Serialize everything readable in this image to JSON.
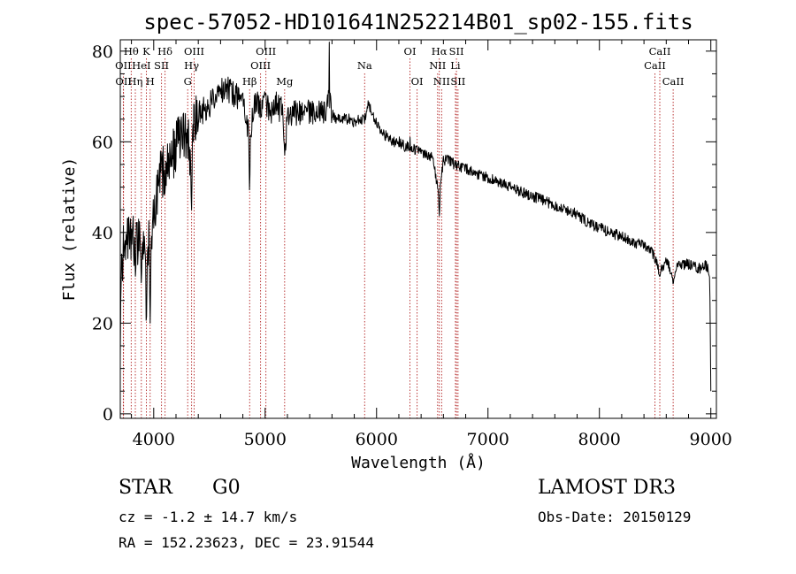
{
  "chart_data": {
    "type": "line",
    "title": "spec-57052-HD101641N252214B01_sp02-155.fits",
    "xlabel": "Wavelength (Å)",
    "ylabel": "Flux (relative)",
    "xlim": [
      3700,
      9050
    ],
    "ylim": [
      -1,
      82.5
    ],
    "x_ticks": [
      4000,
      5000,
      6000,
      7000,
      8000,
      9000
    ],
    "y_ticks": [
      0,
      20,
      40,
      60,
      80
    ],
    "anchors": [
      [
        3700,
        12
      ],
      [
        3710,
        30
      ],
      [
        3730,
        38
      ],
      [
        3760,
        40
      ],
      [
        3800,
        39
      ],
      [
        3850,
        38
      ],
      [
        3900,
        38
      ],
      [
        3940,
        34
      ],
      [
        3970,
        39
      ],
      [
        4000,
        44
      ],
      [
        4050,
        52
      ],
      [
        4100,
        54
      ],
      [
        4150,
        56
      ],
      [
        4200,
        59
      ],
      [
        4260,
        61
      ],
      [
        4300,
        62
      ],
      [
        4340,
        55
      ],
      [
        4360,
        63
      ],
      [
        4400,
        66
      ],
      [
        4450,
        67
      ],
      [
        4500,
        68
      ],
      [
        4550,
        70
      ],
      [
        4600,
        71
      ],
      [
        4650,
        72
      ],
      [
        4700,
        71
      ],
      [
        4750,
        70
      ],
      [
        4800,
        71
      ],
      [
        4861,
        60
      ],
      [
        4900,
        69
      ],
      [
        4950,
        68
      ],
      [
        5000,
        69
      ],
      [
        5050,
        67
      ],
      [
        5100,
        68
      ],
      [
        5150,
        67
      ],
      [
        5180,
        59
      ],
      [
        5200,
        65
      ],
      [
        5250,
        67
      ],
      [
        5300,
        66
      ],
      [
        5350,
        66
      ],
      [
        5400,
        67
      ],
      [
        5450,
        66
      ],
      [
        5500,
        67
      ],
      [
        5550,
        66
      ],
      [
        5577,
        70
      ],
      [
        5600,
        66
      ],
      [
        5650,
        65
      ],
      [
        5700,
        65
      ],
      [
        5750,
        65
      ],
      [
        5800,
        64
      ],
      [
        5850,
        65
      ],
      [
        5893,
        65
      ],
      [
        5920,
        68
      ],
      [
        5950,
        67
      ],
      [
        6000,
        64
      ],
      [
        6050,
        62
      ],
      [
        6100,
        61
      ],
      [
        6150,
        60
      ],
      [
        6200,
        60
      ],
      [
        6250,
        59
      ],
      [
        6300,
        59
      ],
      [
        6350,
        58
      ],
      [
        6400,
        58
      ],
      [
        6450,
        57
      ],
      [
        6500,
        57
      ],
      [
        6563,
        48
      ],
      [
        6600,
        56
      ],
      [
        6650,
        56
      ],
      [
        6700,
        55
      ],
      [
        6800,
        54
      ],
      [
        6900,
        53
      ],
      [
        7000,
        52
      ],
      [
        7100,
        51
      ],
      [
        7200,
        50
      ],
      [
        7300,
        49
      ],
      [
        7400,
        48
      ],
      [
        7500,
        47
      ],
      [
        7600,
        46
      ],
      [
        7700,
        45
      ],
      [
        7800,
        44
      ],
      [
        7900,
        42
      ],
      [
        8000,
        41
      ],
      [
        8100,
        40
      ],
      [
        8200,
        39
      ],
      [
        8300,
        38
      ],
      [
        8400,
        37
      ],
      [
        8450,
        36
      ],
      [
        8498,
        35
      ],
      [
        8542,
        31
      ],
      [
        8600,
        34
      ],
      [
        8662,
        30
      ],
      [
        8700,
        33
      ],
      [
        8800,
        33
      ],
      [
        8900,
        32
      ],
      [
        8950,
        33
      ],
      [
        8990,
        31
      ],
      [
        9000,
        5
      ]
    ],
    "absorption_dips": [
      [
        3835,
        30
      ],
      [
        3889,
        28
      ],
      [
        3934,
        17
      ],
      [
        3968,
        20
      ],
      [
        4102,
        48
      ],
      [
        4340,
        45
      ],
      [
        4861,
        48
      ],
      [
        5175,
        57
      ],
      [
        6563,
        43
      ],
      [
        8498,
        33
      ],
      [
        8542,
        30
      ],
      [
        8662,
        28
      ]
    ],
    "emission_spikes": [
      [
        5577,
        82
      ],
      [
        6300,
        61
      ]
    ],
    "spectral_lines": [
      {
        "label": "Hθ",
        "wl": 3798,
        "row": 1
      },
      {
        "label": "OII",
        "wl": 3727,
        "row": 2
      },
      {
        "label": "OII",
        "wl": 3729,
        "row": 3
      },
      {
        "label": "Hη",
        "wl": 3835,
        "row": 3
      },
      {
        "label": "HeI",
        "wl": 3889,
        "row": 2
      },
      {
        "label": "K",
        "wl": 3934,
        "row": 1
      },
      {
        "label": "H",
        "wl": 3968,
        "row": 3
      },
      {
        "label": "SII",
        "wl": 4070,
        "row": 2
      },
      {
        "label": "Hδ",
        "wl": 4102,
        "row": 1
      },
      {
        "label": "G",
        "wl": 4305,
        "row": 3
      },
      {
        "label": "OIII",
        "wl": 4363,
        "row": 1
      },
      {
        "label": "Hγ",
        "wl": 4340,
        "row": 2
      },
      {
        "label": "Hβ",
        "wl": 4861,
        "row": 3
      },
      {
        "label": "OIII",
        "wl": 5007,
        "row": 1
      },
      {
        "label": "OIII",
        "wl": 4959,
        "row": 2
      },
      {
        "label": "Mg",
        "wl": 5175,
        "row": 3
      },
      {
        "label": "Na",
        "wl": 5893,
        "row": 2
      },
      {
        "label": "OI",
        "wl": 6300,
        "row": 1
      },
      {
        "label": "OI",
        "wl": 6364,
        "row": 3
      },
      {
        "label": "Hα",
        "wl": 6563,
        "row": 1
      },
      {
        "label": "NII",
        "wl": 6548,
        "row": 2
      },
      {
        "label": "NII",
        "wl": 6584,
        "row": 3
      },
      {
        "label": "SII",
        "wl": 6717,
        "row": 1
      },
      {
        "label": "Li",
        "wl": 6708,
        "row": 2
      },
      {
        "label": "SII",
        "wl": 6731,
        "row": 3
      },
      {
        "label": "CaII",
        "wl": 8542,
        "row": 1
      },
      {
        "label": "CaII",
        "wl": 8498,
        "row": 2
      },
      {
        "label": "CaII",
        "wl": 8662,
        "row": 3
      }
    ],
    "colors": {
      "spectrum": "#000000",
      "line_marker": "#b22222",
      "axes": "#000000"
    }
  },
  "info": {
    "object_class": "STAR",
    "subclass": "G0",
    "survey": "LAMOST DR3",
    "redshift": "cz = -1.2 ± 14.7 km/s",
    "obs_date": "Obs-Date: 20150129",
    "coords": "RA = 152.23623, DEC =  23.91544"
  }
}
